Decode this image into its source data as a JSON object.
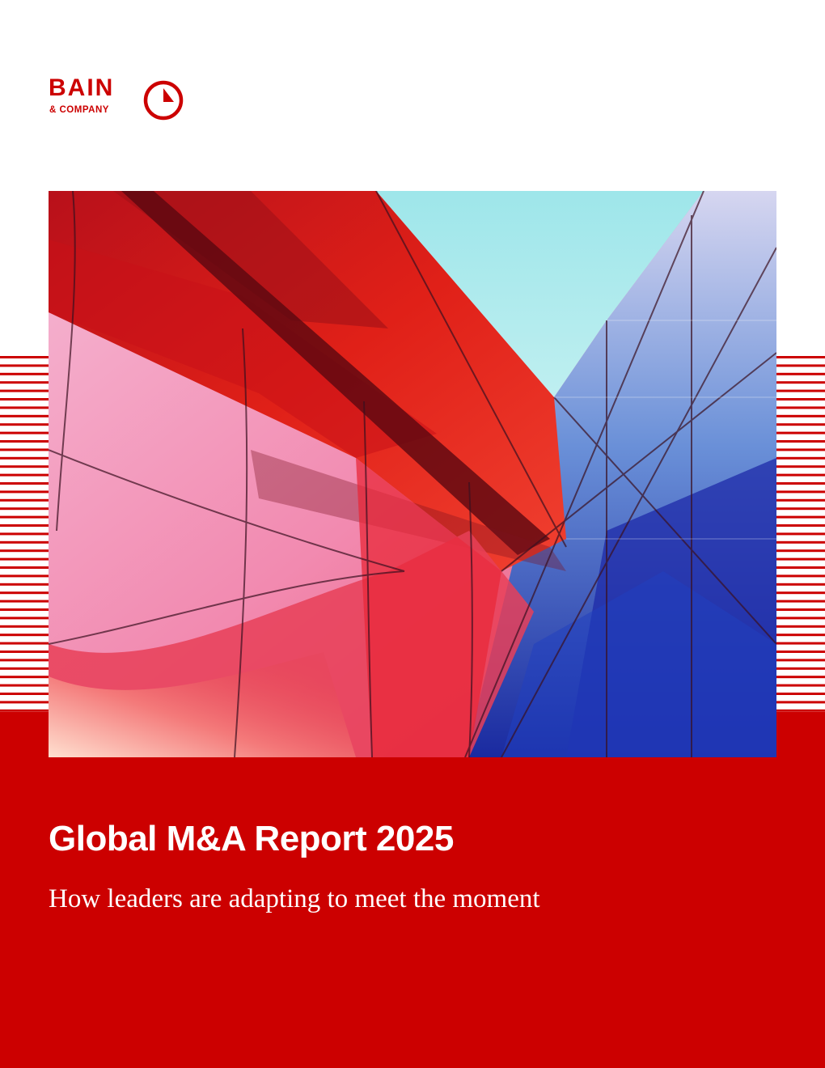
{
  "brand": {
    "name": "BAIN",
    "sub": "& COMPANY",
    "color": "#cc0000"
  },
  "cover": {
    "title": "Global M&A Report 2025",
    "subtitle": "How leaders are adapting to meet the moment",
    "band_color": "#cc0000",
    "image_subject": "red-and-blue-glass-facade-photo"
  }
}
